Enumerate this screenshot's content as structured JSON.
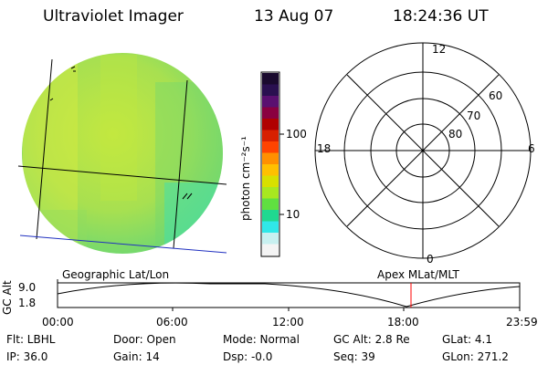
{
  "header": {
    "title": "Ultraviolet Imager",
    "date": "13 Aug 07",
    "time": "18:24:36 UT"
  },
  "colorbar": {
    "label": "photon cm⁻²s⁻¹",
    "ticks": [
      "100",
      "10"
    ],
    "colors": [
      "#1a0a2e",
      "#2a1050",
      "#5a1070",
      "#8a0040",
      "#b00000",
      "#d82000",
      "#ff4400",
      "#ff9000",
      "#ffc000",
      "#d8e000",
      "#a8e820",
      "#60e040",
      "#20d890",
      "#30e8e8",
      "#c8f0f0",
      "#f4f4f4"
    ]
  },
  "polar": {
    "mlt_labels": [
      "12",
      "6",
      "18",
      "0"
    ],
    "lat_labels": [
      "60",
      "70",
      "80"
    ]
  },
  "panel_labels": {
    "geographic": "Geographic Lat/Lon",
    "apex": "Apex MLat/MLT"
  },
  "timeline": {
    "y_label": "GC Alt",
    "y_ticks": [
      "9.0",
      "1.8"
    ],
    "x_ticks": [
      "00:00",
      "06:00",
      "12:00",
      "18:00",
      "23:59"
    ]
  },
  "status": {
    "filter": "Flt: LBHL",
    "ip": "IP: 36.0",
    "door": "Door: Open",
    "gain": "Gain: 14",
    "mode": "Mode: Normal",
    "dsp": "Dsp:  -0.0",
    "gc_alt": "GC Alt: 2.8 Re",
    "seq": "Seq: 39",
    "glat": "GLat:   4.1",
    "glon": "GLon: 271.2"
  },
  "colors": {
    "earth_fill": "#b4e24a",
    "marker": "#ff0000",
    "grid_blue": "#2030c0"
  }
}
